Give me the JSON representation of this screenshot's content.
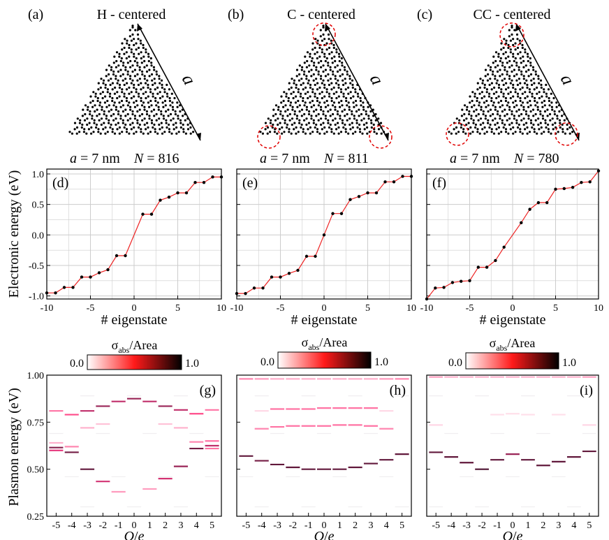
{
  "panels_top": [
    {
      "label": "(a)",
      "title": "H - centered",
      "a_text": "a",
      "a_rest": " = 7 nm",
      "n_text": "N",
      "n_rest": " = 816",
      "arrow_label": "a",
      "circles": false,
      "colors": {
        "lattice": "#000000",
        "arrow": "#000000"
      }
    },
    {
      "label": "(b)",
      "title": "C - centered",
      "a_text": "a",
      "a_rest": " = 7 nm",
      "n_text": "N",
      "n_rest": " = 811",
      "arrow_label": "a",
      "circles": true,
      "colors": {
        "lattice": "#000000",
        "circle": "#e00000"
      }
    },
    {
      "label": "(c)",
      "title": "CC - centered",
      "a_text": "a",
      "a_rest": " = 7 nm",
      "n_text": "N",
      "n_rest": " = 780",
      "arrow_label": "a",
      "circles": true,
      "colors": {
        "lattice": "#000000",
        "circle": "#e00000"
      }
    }
  ],
  "chart_data": [
    {
      "type": "line",
      "label": "(d)",
      "x": [
        -10,
        -9,
        -8,
        -7,
        -6,
        -5,
        -4,
        -3,
        -2,
        -1,
        1,
        2,
        3,
        4,
        5,
        6,
        7,
        8,
        9,
        10
      ],
      "y": [
        -0.95,
        -0.95,
        -0.86,
        -0.86,
        -0.69,
        -0.69,
        -0.62,
        -0.57,
        -0.34,
        -0.34,
        0.34,
        0.34,
        0.57,
        0.62,
        0.69,
        0.69,
        0.86,
        0.86,
        0.95,
        0.95
      ],
      "xlim": [
        -10,
        10
      ],
      "ylim": [
        -1.05,
        1.08
      ],
      "xticks": [
        -10,
        -5,
        0,
        5,
        10
      ],
      "yticks": [
        -1.0,
        -0.5,
        0.0,
        0.5,
        1.0
      ],
      "xlabel": "# eigenstate",
      "ylabel": "Electronic energy (eV)",
      "grid": true,
      "colors": {
        "line": "#ee2222",
        "marker": "#000000"
      }
    },
    {
      "type": "line",
      "label": "(e)",
      "x": [
        -10,
        -9,
        -8,
        -7,
        -6,
        -5,
        -4,
        -3,
        -2,
        -1,
        0,
        1,
        2,
        3,
        4,
        5,
        6,
        7,
        8,
        9,
        10
      ],
      "y": [
        -0.96,
        -0.96,
        -0.87,
        -0.87,
        -0.69,
        -0.69,
        -0.63,
        -0.58,
        -0.35,
        -0.35,
        0.0,
        0.35,
        0.35,
        0.58,
        0.63,
        0.69,
        0.69,
        0.87,
        0.87,
        0.96,
        0.96
      ],
      "xlim": [
        -10,
        10
      ],
      "ylim": [
        -1.05,
        1.08
      ],
      "xticks": [
        -10,
        -5,
        0,
        5,
        10
      ],
      "yticks": [
        -1.0,
        -0.5,
        0.0,
        0.5,
        1.0
      ],
      "xlabel": "# eigenstate",
      "grid": true,
      "colors": {
        "line": "#ee2222",
        "marker": "#000000"
      }
    },
    {
      "type": "line",
      "label": "(f)",
      "x": [
        -10,
        -9,
        -8,
        -7,
        -6,
        -5,
        -4,
        -3,
        -2,
        -1,
        1,
        2,
        3,
        4,
        5,
        6,
        7,
        8,
        9,
        10
      ],
      "y": [
        -1.05,
        -0.87,
        -0.86,
        -0.78,
        -0.76,
        -0.75,
        -0.53,
        -0.53,
        -0.42,
        -0.2,
        0.2,
        0.42,
        0.53,
        0.53,
        0.75,
        0.76,
        0.78,
        0.86,
        0.87,
        1.05
      ],
      "xlim": [
        -10,
        10
      ],
      "ylim": [
        -1.05,
        1.08
      ],
      "xticks": [
        -10,
        -5,
        0,
        5,
        10
      ],
      "yticks": [
        -1.0,
        -0.5,
        0.0,
        0.5,
        1.0
      ],
      "xlabel": "# eigenstate",
      "grid": true,
      "colors": {
        "line": "#ee2222",
        "marker": "#000000"
      }
    },
    {
      "type": "heatmap",
      "label": "(g)",
      "colorbar": {
        "label": "σ",
        "label_sub": "abs",
        "label_rest": "/Area",
        "min_label": "0.0",
        "max_label": "1.0",
        "range": [
          0,
          1
        ],
        "colors": [
          "#ffffff",
          "#ff1a1a",
          "#000000"
        ]
      },
      "x": [
        -5,
        -4,
        -3,
        -2,
        -1,
        0,
        1,
        2,
        3,
        4,
        5
      ],
      "xlabel": "Q/e",
      "ylabel": "Plasmon energy (eV)",
      "xlim": [
        -5.6,
        5.6
      ],
      "ylim": [
        0.25,
        1.0
      ],
      "yticks": [
        0.25,
        0.5,
        0.75,
        1.0
      ],
      "ytick_labels": [
        "0.25",
        "0.50",
        "0.75",
        "1.00"
      ],
      "segments": [
        {
          "q": -5,
          "e": 0.81,
          "w": 0.35
        },
        {
          "q": -5,
          "e": 0.64,
          "w": 0.2
        },
        {
          "q": -5,
          "e": 0.615,
          "w": 0.75
        },
        {
          "q": -5,
          "e": 0.6,
          "w": 0.5
        },
        {
          "q": -4,
          "e": 0.79,
          "w": 0.45
        },
        {
          "q": -4,
          "e": 0.62,
          "w": 0.3
        },
        {
          "q": -4,
          "e": 0.59,
          "w": 0.8
        },
        {
          "q": -3,
          "e": 0.81,
          "w": 0.6
        },
        {
          "q": -3,
          "e": 0.72,
          "w": 0.2
        },
        {
          "q": -3,
          "e": 0.5,
          "w": 0.85
        },
        {
          "q": -2,
          "e": 0.835,
          "w": 0.7
        },
        {
          "q": -2,
          "e": 0.74,
          "w": 0.15
        },
        {
          "q": -2,
          "e": 0.435,
          "w": 0.55
        },
        {
          "q": -1,
          "e": 0.86,
          "w": 0.6
        },
        {
          "q": -1,
          "e": 0.38,
          "w": 0.25
        },
        {
          "q": 0,
          "e": 0.875,
          "w": 0.7
        },
        {
          "q": 1,
          "e": 0.86,
          "w": 0.6
        },
        {
          "q": 1,
          "e": 0.395,
          "w": 0.25
        },
        {
          "q": 2,
          "e": 0.835,
          "w": 0.7
        },
        {
          "q": 2,
          "e": 0.74,
          "w": 0.15
        },
        {
          "q": 2,
          "e": 0.45,
          "w": 0.55
        },
        {
          "q": 3,
          "e": 0.815,
          "w": 0.6
        },
        {
          "q": 3,
          "e": 0.72,
          "w": 0.2
        },
        {
          "q": 3,
          "e": 0.515,
          "w": 0.7
        },
        {
          "q": 4,
          "e": 0.795,
          "w": 0.45
        },
        {
          "q": 4,
          "e": 0.645,
          "w": 0.3
        },
        {
          "q": 4,
          "e": 0.61,
          "w": 0.8
        },
        {
          "q": 5,
          "e": 0.815,
          "w": 0.35
        },
        {
          "q": 5,
          "e": 0.65,
          "w": 0.35
        },
        {
          "q": 5,
          "e": 0.625,
          "w": 0.6
        },
        {
          "q": 5,
          "e": 0.61,
          "w": 0.35
        }
      ]
    },
    {
      "type": "heatmap",
      "label": "(h)",
      "colorbar": {
        "label": "σ",
        "label_sub": "abs",
        "label_rest": "/Area",
        "min_label": "0.0",
        "max_label": "1.0",
        "range": [
          0,
          1
        ],
        "colors": [
          "#ffffff",
          "#ff1a1a",
          "#000000"
        ]
      },
      "x": [
        -5,
        -4,
        -3,
        -2,
        -1,
        0,
        1,
        2,
        3,
        4,
        5
      ],
      "xlabel": "Q/e",
      "xlim": [
        -5.6,
        5.6
      ],
      "ylim": [
        0.25,
        1.0
      ],
      "segments": [
        {
          "q": -5,
          "e": 0.98,
          "w": 0.3
        },
        {
          "q": -5,
          "e": 0.57,
          "w": 0.85
        },
        {
          "q": -4,
          "e": 0.98,
          "w": 0.25
        },
        {
          "q": -4,
          "e": 0.81,
          "w": 0.1
        },
        {
          "q": -4,
          "e": 0.715,
          "w": 0.3
        },
        {
          "q": -4,
          "e": 0.545,
          "w": 0.8
        },
        {
          "q": -3,
          "e": 0.98,
          "w": 0.2
        },
        {
          "q": -3,
          "e": 0.82,
          "w": 0.35
        },
        {
          "q": -3,
          "e": 0.725,
          "w": 0.35
        },
        {
          "q": -3,
          "e": 0.525,
          "w": 0.85
        },
        {
          "q": -2,
          "e": 0.98,
          "w": 0.2
        },
        {
          "q": -2,
          "e": 0.82,
          "w": 0.35
        },
        {
          "q": -2,
          "e": 0.73,
          "w": 0.35
        },
        {
          "q": -2,
          "e": 0.51,
          "w": 0.85
        },
        {
          "q": -1,
          "e": 0.98,
          "w": 0.2
        },
        {
          "q": -1,
          "e": 0.82,
          "w": 0.35
        },
        {
          "q": -1,
          "e": 0.73,
          "w": 0.35
        },
        {
          "q": -1,
          "e": 0.5,
          "w": 0.85
        },
        {
          "q": 0,
          "e": 0.98,
          "w": 0.2
        },
        {
          "q": 0,
          "e": 0.825,
          "w": 0.35
        },
        {
          "q": 0,
          "e": 0.73,
          "w": 0.35
        },
        {
          "q": 0,
          "e": 0.5,
          "w": 0.85
        },
        {
          "q": 1,
          "e": 0.98,
          "w": 0.2
        },
        {
          "q": 1,
          "e": 0.825,
          "w": 0.35
        },
        {
          "q": 1,
          "e": 0.735,
          "w": 0.35
        },
        {
          "q": 1,
          "e": 0.5,
          "w": 0.85
        },
        {
          "q": 2,
          "e": 0.98,
          "w": 0.2
        },
        {
          "q": 2,
          "e": 0.825,
          "w": 0.35
        },
        {
          "q": 2,
          "e": 0.735,
          "w": 0.35
        },
        {
          "q": 2,
          "e": 0.51,
          "w": 0.85
        },
        {
          "q": 3,
          "e": 0.98,
          "w": 0.2
        },
        {
          "q": 3,
          "e": 0.825,
          "w": 0.35
        },
        {
          "q": 3,
          "e": 0.73,
          "w": 0.35
        },
        {
          "q": 3,
          "e": 0.53,
          "w": 0.85
        },
        {
          "q": 4,
          "e": 0.98,
          "w": 0.25
        },
        {
          "q": 4,
          "e": 0.81,
          "w": 0.1
        },
        {
          "q": 4,
          "e": 0.715,
          "w": 0.3
        },
        {
          "q": 4,
          "e": 0.55,
          "w": 0.85
        },
        {
          "q": 5,
          "e": 0.98,
          "w": 0.3
        },
        {
          "q": 5,
          "e": 0.58,
          "w": 0.85
        }
      ]
    },
    {
      "type": "heatmap",
      "label": "(i)",
      "colorbar": {
        "label": "σ",
        "label_sub": "abs",
        "label_rest": "/Area",
        "min_label": "0.0",
        "max_label": "1.0",
        "range": [
          0,
          1
        ],
        "colors": [
          "#ffffff",
          "#ff1a1a",
          "#000000"
        ]
      },
      "x": [
        -5,
        -4,
        -3,
        -2,
        -1,
        0,
        1,
        2,
        3,
        4,
        5
      ],
      "xlabel": "Q/e",
      "xlim": [
        -5.6,
        5.6
      ],
      "ylim": [
        0.25,
        1.0
      ],
      "segments": [
        {
          "q": -5,
          "e": 0.99,
          "w": 0.25
        },
        {
          "q": -5,
          "e": 0.735,
          "w": 0.1
        },
        {
          "q": -5,
          "e": 0.59,
          "w": 0.85
        },
        {
          "q": -4,
          "e": 0.99,
          "w": 0.2
        },
        {
          "q": -4,
          "e": 0.565,
          "w": 0.85
        },
        {
          "q": -3,
          "e": 0.99,
          "w": 0.2
        },
        {
          "q": -3,
          "e": 0.535,
          "w": 0.85
        },
        {
          "q": -2,
          "e": 0.99,
          "w": 0.2
        },
        {
          "q": -2,
          "e": 0.5,
          "w": 0.9
        },
        {
          "q": -1,
          "e": 0.99,
          "w": 0.2
        },
        {
          "q": -1,
          "e": 0.79,
          "w": 0.08
        },
        {
          "q": -1,
          "e": 0.55,
          "w": 0.85
        },
        {
          "q": 0,
          "e": 0.99,
          "w": 0.2
        },
        {
          "q": 0,
          "e": 0.795,
          "w": 0.08
        },
        {
          "q": 0,
          "e": 0.58,
          "w": 0.7
        },
        {
          "q": 1,
          "e": 0.99,
          "w": 0.2
        },
        {
          "q": 1,
          "e": 0.79,
          "w": 0.08
        },
        {
          "q": 1,
          "e": 0.55,
          "w": 0.85
        },
        {
          "q": 2,
          "e": 0.99,
          "w": 0.2
        },
        {
          "q": 2,
          "e": 0.52,
          "w": 0.85
        },
        {
          "q": 3,
          "e": 0.99,
          "w": 0.2
        },
        {
          "q": 3,
          "e": 0.79,
          "w": 0.08
        },
        {
          "q": 3,
          "e": 0.54,
          "w": 0.85
        },
        {
          "q": 4,
          "e": 0.99,
          "w": 0.2
        },
        {
          "q": 4,
          "e": 0.565,
          "w": 0.85
        },
        {
          "q": 5,
          "e": 0.99,
          "w": 0.25
        },
        {
          "q": 5,
          "e": 0.735,
          "w": 0.1
        },
        {
          "q": 5,
          "e": 0.595,
          "w": 0.85
        }
      ]
    }
  ]
}
